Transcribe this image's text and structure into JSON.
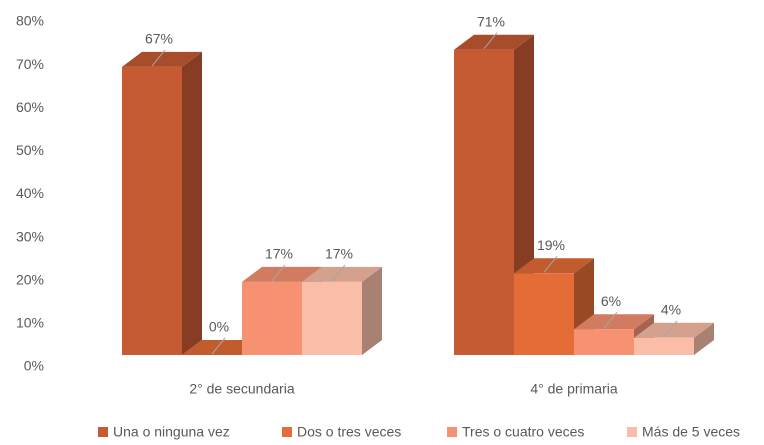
{
  "chart_data": {
    "type": "bar3d",
    "categories": [
      "2° de secundaria",
      "4° de primaria"
    ],
    "series": [
      {
        "name": "Una o ninguna vez",
        "color": "#c55a33",
        "values": [
          67,
          71
        ],
        "value_labels": [
          "67%",
          "71%"
        ]
      },
      {
        "name": "Dos o tres veces",
        "color": "#e36c37",
        "values": [
          0,
          19
        ],
        "value_labels": [
          "0%",
          "19%"
        ]
      },
      {
        "name": "Tres o cuatro veces",
        "color": "#f69272",
        "values": [
          17,
          6
        ],
        "value_labels": [
          "17%",
          "6%"
        ]
      },
      {
        "name": "Más de 5 veces",
        "color": "#f9bda8",
        "values": [
          17,
          4
        ],
        "value_labels": [
          "17%",
          "4%"
        ]
      }
    ],
    "ylim": [
      0,
      80
    ],
    "yticks": [
      {
        "value": 0,
        "label": "0%"
      },
      {
        "value": 10,
        "label": "10%"
      },
      {
        "value": 20,
        "label": "20%"
      },
      {
        "value": 30,
        "label": "30%"
      },
      {
        "value": 40,
        "label": "40%"
      },
      {
        "value": 50,
        "label": "50%"
      },
      {
        "value": 60,
        "label": "60%"
      },
      {
        "value": 70,
        "label": "70%"
      },
      {
        "value": 80,
        "label": "80%"
      }
    ],
    "legend": "bottom"
  }
}
